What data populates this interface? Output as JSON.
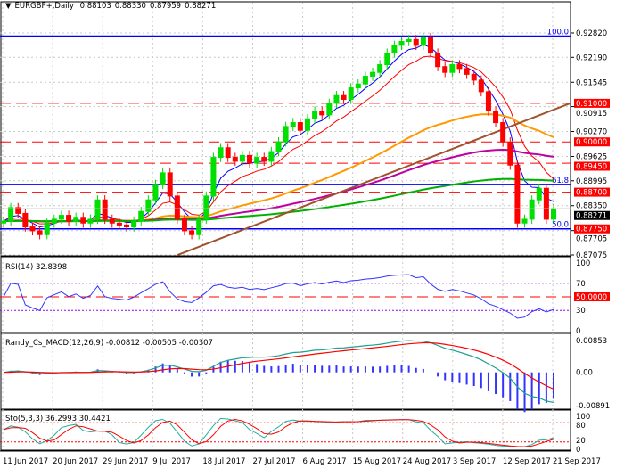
{
  "header": {
    "symbol": "EURGBP+,Daily",
    "open": "0.88103",
    "high": "0.88330",
    "low": "0.87959",
    "close": "0.88271"
  },
  "colors": {
    "bull": "#00e000",
    "bear": "#ff0000",
    "fib": "#0000ff",
    "level": "#ff0000",
    "ma_fast": "#0000ff",
    "ma_red": "#ff0000",
    "ma_orange": "#ff9900",
    "ma_magenta": "#c000a0",
    "ma_green": "#00b000",
    "trendline": "#a0522d",
    "rsi": "#3333ff",
    "macd_main": "#20a090",
    "macd_signal": "#ff0000",
    "macd_hist": "#3333ff",
    "sto_main": "#20b0a0",
    "sto_signal": "#ff0000"
  },
  "chart_data": [
    {
      "type": "candlestick",
      "title": "EURGBP+,Daily",
      "ylim": [
        0.87075,
        0.9282
      ],
      "price_ticks": [
        "0.92820",
        "0.92190",
        "0.91545",
        "0.90915",
        "0.90270",
        "0.89625",
        "0.88995",
        "0.88350",
        "0.87705",
        "0.87075"
      ],
      "x_ticks": [
        "11 Jun 2017",
        "20 Jun 2017",
        "29 Jun 2017",
        "9 Jul 2017",
        "18 Jul 2017",
        "27 Jul 2017",
        "6 Aug 2017",
        "15 Aug 2017",
        "24 Aug 2017",
        "3 Sep 2017",
        "12 Sep 2017",
        "21 Sep 2017"
      ],
      "closes": [
        0.8795,
        0.883,
        0.8815,
        0.878,
        0.877,
        0.876,
        0.879,
        0.88,
        0.881,
        0.8795,
        0.8805,
        0.879,
        0.88,
        0.885,
        0.88,
        0.879,
        0.8785,
        0.878,
        0.8795,
        0.882,
        0.885,
        0.889,
        0.892,
        0.886,
        0.88,
        0.877,
        0.876,
        0.88,
        0.886,
        0.896,
        0.8985,
        0.896,
        0.895,
        0.8965,
        0.8945,
        0.896,
        0.895,
        0.8975,
        0.9,
        0.904,
        0.905,
        0.903,
        0.906,
        0.908,
        0.907,
        0.91,
        0.912,
        0.911,
        0.914,
        0.915,
        0.917,
        0.918,
        0.92,
        0.923,
        0.925,
        0.926,
        0.9265,
        0.925,
        0.927,
        0.923,
        0.9195,
        0.918,
        0.92,
        0.919,
        0.9175,
        0.916,
        0.913,
        0.908,
        0.905,
        0.9,
        0.894,
        0.879,
        0.88,
        0.885,
        0.888,
        0.88,
        0.88271
      ],
      "fib_levels": [
        {
          "label": "100.0",
          "price": 0.9274
        },
        {
          "label": "61.8",
          "price": 0.889
        },
        {
          "label": "50.0",
          "price": 0.8775
        }
      ],
      "horizontal_levels": [
        "0.91000",
        "0.90000",
        "0.89450",
        "0.88700",
        "0.87750"
      ],
      "current_price": "0.88271",
      "trendline": {
        "from": [
          24,
          0.8707
        ],
        "to": [
          79,
          0.9105
        ]
      }
    },
    {
      "type": "line",
      "title": "RSI(14) 32.8398",
      "ylim": [
        0,
        100
      ],
      "ticks": [
        "100",
        "70",
        "30",
        "0"
      ],
      "levels": [
        70,
        30
      ],
      "highlight_level": "50.0000"
    },
    {
      "type": "line",
      "title": "Randy_Cs_MACD(12,26,9) -0.00812 -0.00505 -0.00307",
      "ylim": [
        -0.00891,
        0.00853
      ],
      "ticks": [
        "0.00853",
        "0.00",
        "-0.00891"
      ]
    },
    {
      "type": "line",
      "title": "Sto(5,3,3) 36.2993 30.4421",
      "ylim": [
        0,
        100
      ],
      "ticks": [
        "100",
        "80",
        "20",
        "0"
      ],
      "levels": [
        80,
        20
      ]
    }
  ]
}
